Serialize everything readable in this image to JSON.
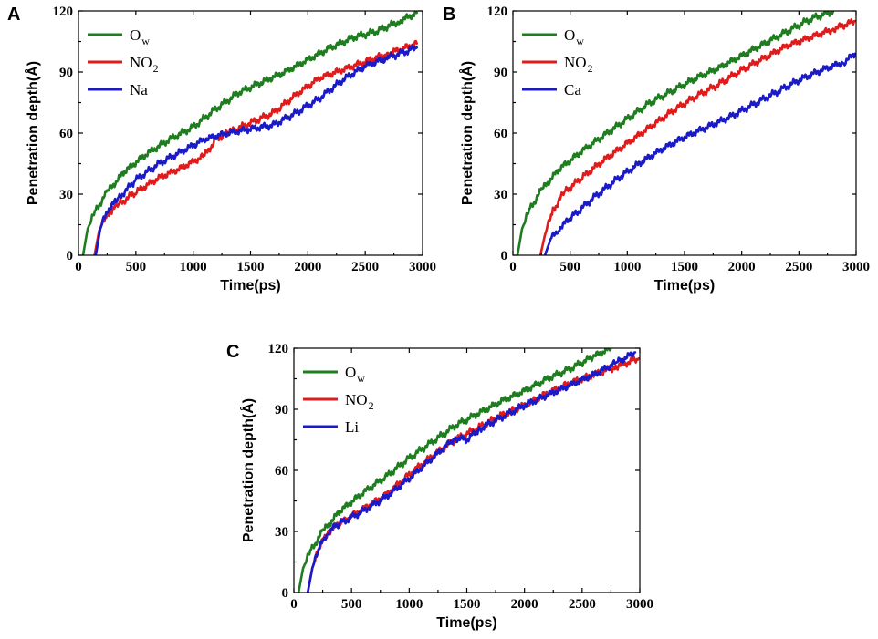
{
  "chart_data": [
    {
      "panel": "A",
      "type": "line",
      "xlabel": "Time(ps)",
      "ylabel": "Penetration depth(Å)",
      "xlim": [
        0,
        3000
      ],
      "ylim": [
        0,
        120
      ],
      "xticks": [
        0,
        500,
        1000,
        1500,
        2000,
        2500,
        3000
      ],
      "yticks": [
        0,
        30,
        60,
        90,
        120
      ],
      "legend_position": "top-left",
      "series": [
        {
          "name": "O",
          "sub": "w",
          "color": "#1e7d1e",
          "x": [
            40,
            80,
            150,
            250,
            400,
            600,
            800,
            1000,
            1200,
            1400,
            1600,
            1800,
            2000,
            2200,
            2400,
            2600,
            2800,
            2950
          ],
          "y": [
            0,
            13,
            22,
            31,
            41,
            50,
            57,
            63,
            72,
            80,
            85,
            90,
            96,
            102,
            107,
            110,
            115,
            119
          ]
        },
        {
          "name": "NO",
          "sub": "2",
          "color": "#e01b1b",
          "x": [
            140,
            180,
            250,
            350,
            500,
            700,
            900,
            1100,
            1200,
            1300,
            1500,
            1700,
            1900,
            2100,
            2300,
            2500,
            2700,
            2950
          ],
          "y": [
            0,
            12,
            20,
            25,
            31,
            38,
            43,
            49,
            57,
            60,
            65,
            70,
            79,
            87,
            91,
            95,
            99,
            104
          ]
        },
        {
          "name": "Na",
          "sub": "",
          "color": "#1a1ac8",
          "x": [
            150,
            190,
            250,
            350,
            500,
            700,
            900,
            1100,
            1300,
            1500,
            1700,
            1900,
            2100,
            2300,
            2500,
            2700,
            2950
          ],
          "y": [
            0,
            13,
            22,
            28,
            37,
            45,
            51,
            57,
            60,
            62,
            64,
            70,
            77,
            86,
            93,
            97,
            102
          ]
        }
      ]
    },
    {
      "panel": "B",
      "type": "line",
      "xlabel": "Time(ps)",
      "ylabel": "Penetration depth(Å)",
      "xlim": [
        0,
        3000
      ],
      "ylim": [
        0,
        120
      ],
      "xticks": [
        0,
        500,
        1000,
        1500,
        2000,
        2500,
        3000
      ],
      "yticks": [
        0,
        30,
        60,
        90,
        120
      ],
      "legend_position": "top-left",
      "series": [
        {
          "name": "O",
          "sub": "w",
          "color": "#1e7d1e",
          "x": [
            40,
            80,
            150,
            250,
            400,
            600,
            800,
            1000,
            1200,
            1400,
            1600,
            1800,
            2000,
            2200,
            2400,
            2600,
            2800
          ],
          "y": [
            0,
            13,
            23,
            32,
            42,
            51,
            59,
            67,
            75,
            81,
            87,
            92,
            98,
            104,
            110,
            116,
            120
          ]
        },
        {
          "name": "NO",
          "sub": "2",
          "color": "#e01b1b",
          "x": [
            240,
            280,
            350,
            450,
            600,
            800,
            1000,
            1200,
            1400,
            1600,
            1800,
            2000,
            2200,
            2400,
            2600,
            2800,
            2990
          ],
          "y": [
            0,
            10,
            22,
            31,
            38,
            47,
            55,
            63,
            71,
            78,
            84,
            91,
            97,
            103,
            107,
            111,
            115
          ]
        },
        {
          "name": "Ca",
          "sub": "",
          "color": "#1a1ac8",
          "x": [
            280,
            330,
            400,
            500,
            700,
            900,
            1100,
            1300,
            1500,
            1700,
            1900,
            2100,
            2300,
            2500,
            2700,
            2900,
            2990
          ],
          "y": [
            0,
            8,
            13,
            18,
            28,
            37,
            45,
            52,
            58,
            63,
            68,
            74,
            80,
            86,
            91,
            95,
            99
          ]
        }
      ]
    },
    {
      "panel": "C",
      "type": "line",
      "xlabel": "Time(ps)",
      "ylabel": "Penetration depth(Å)",
      "xlim": [
        0,
        3000
      ],
      "ylim": [
        0,
        120
      ],
      "xticks": [
        0,
        500,
        1000,
        1500,
        2000,
        2500,
        3000
      ],
      "yticks": [
        0,
        30,
        60,
        90,
        120
      ],
      "legend_position": "top-left",
      "series": [
        {
          "name": "O",
          "sub": "w",
          "color": "#1e7d1e",
          "x": [
            40,
            80,
            150,
            250,
            400,
            600,
            800,
            1000,
            1200,
            1400,
            1600,
            1800,
            2000,
            2200,
            2400,
            2600,
            2750
          ],
          "y": [
            0,
            12,
            21,
            30,
            40,
            49,
            57,
            66,
            74,
            82,
            88,
            94,
            99,
            105,
            110,
            116,
            120
          ]
        },
        {
          "name": "NO",
          "sub": "2",
          "color": "#e01b1b",
          "x": [
            120,
            160,
            220,
            300,
            400,
            600,
            800,
            1000,
            1200,
            1400,
            1600,
            1800,
            2000,
            2200,
            2400,
            2600,
            2800,
            2990
          ],
          "y": [
            0,
            12,
            22,
            30,
            34,
            41,
            48,
            58,
            67,
            75,
            81,
            87,
            92,
            98,
            103,
            107,
            111,
            115
          ]
        },
        {
          "name": "Li",
          "sub": "",
          "color": "#1a1ac8",
          "x": [
            120,
            160,
            220,
            300,
            400,
            600,
            800,
            1000,
            1200,
            1400,
            1500,
            1600,
            1800,
            2000,
            2200,
            2400,
            2600,
            2800,
            2960
          ],
          "y": [
            0,
            12,
            22,
            30,
            34,
            40,
            47,
            56,
            66,
            76,
            75,
            80,
            86,
            92,
            97,
            102,
            107,
            113,
            118
          ]
        }
      ]
    }
  ]
}
